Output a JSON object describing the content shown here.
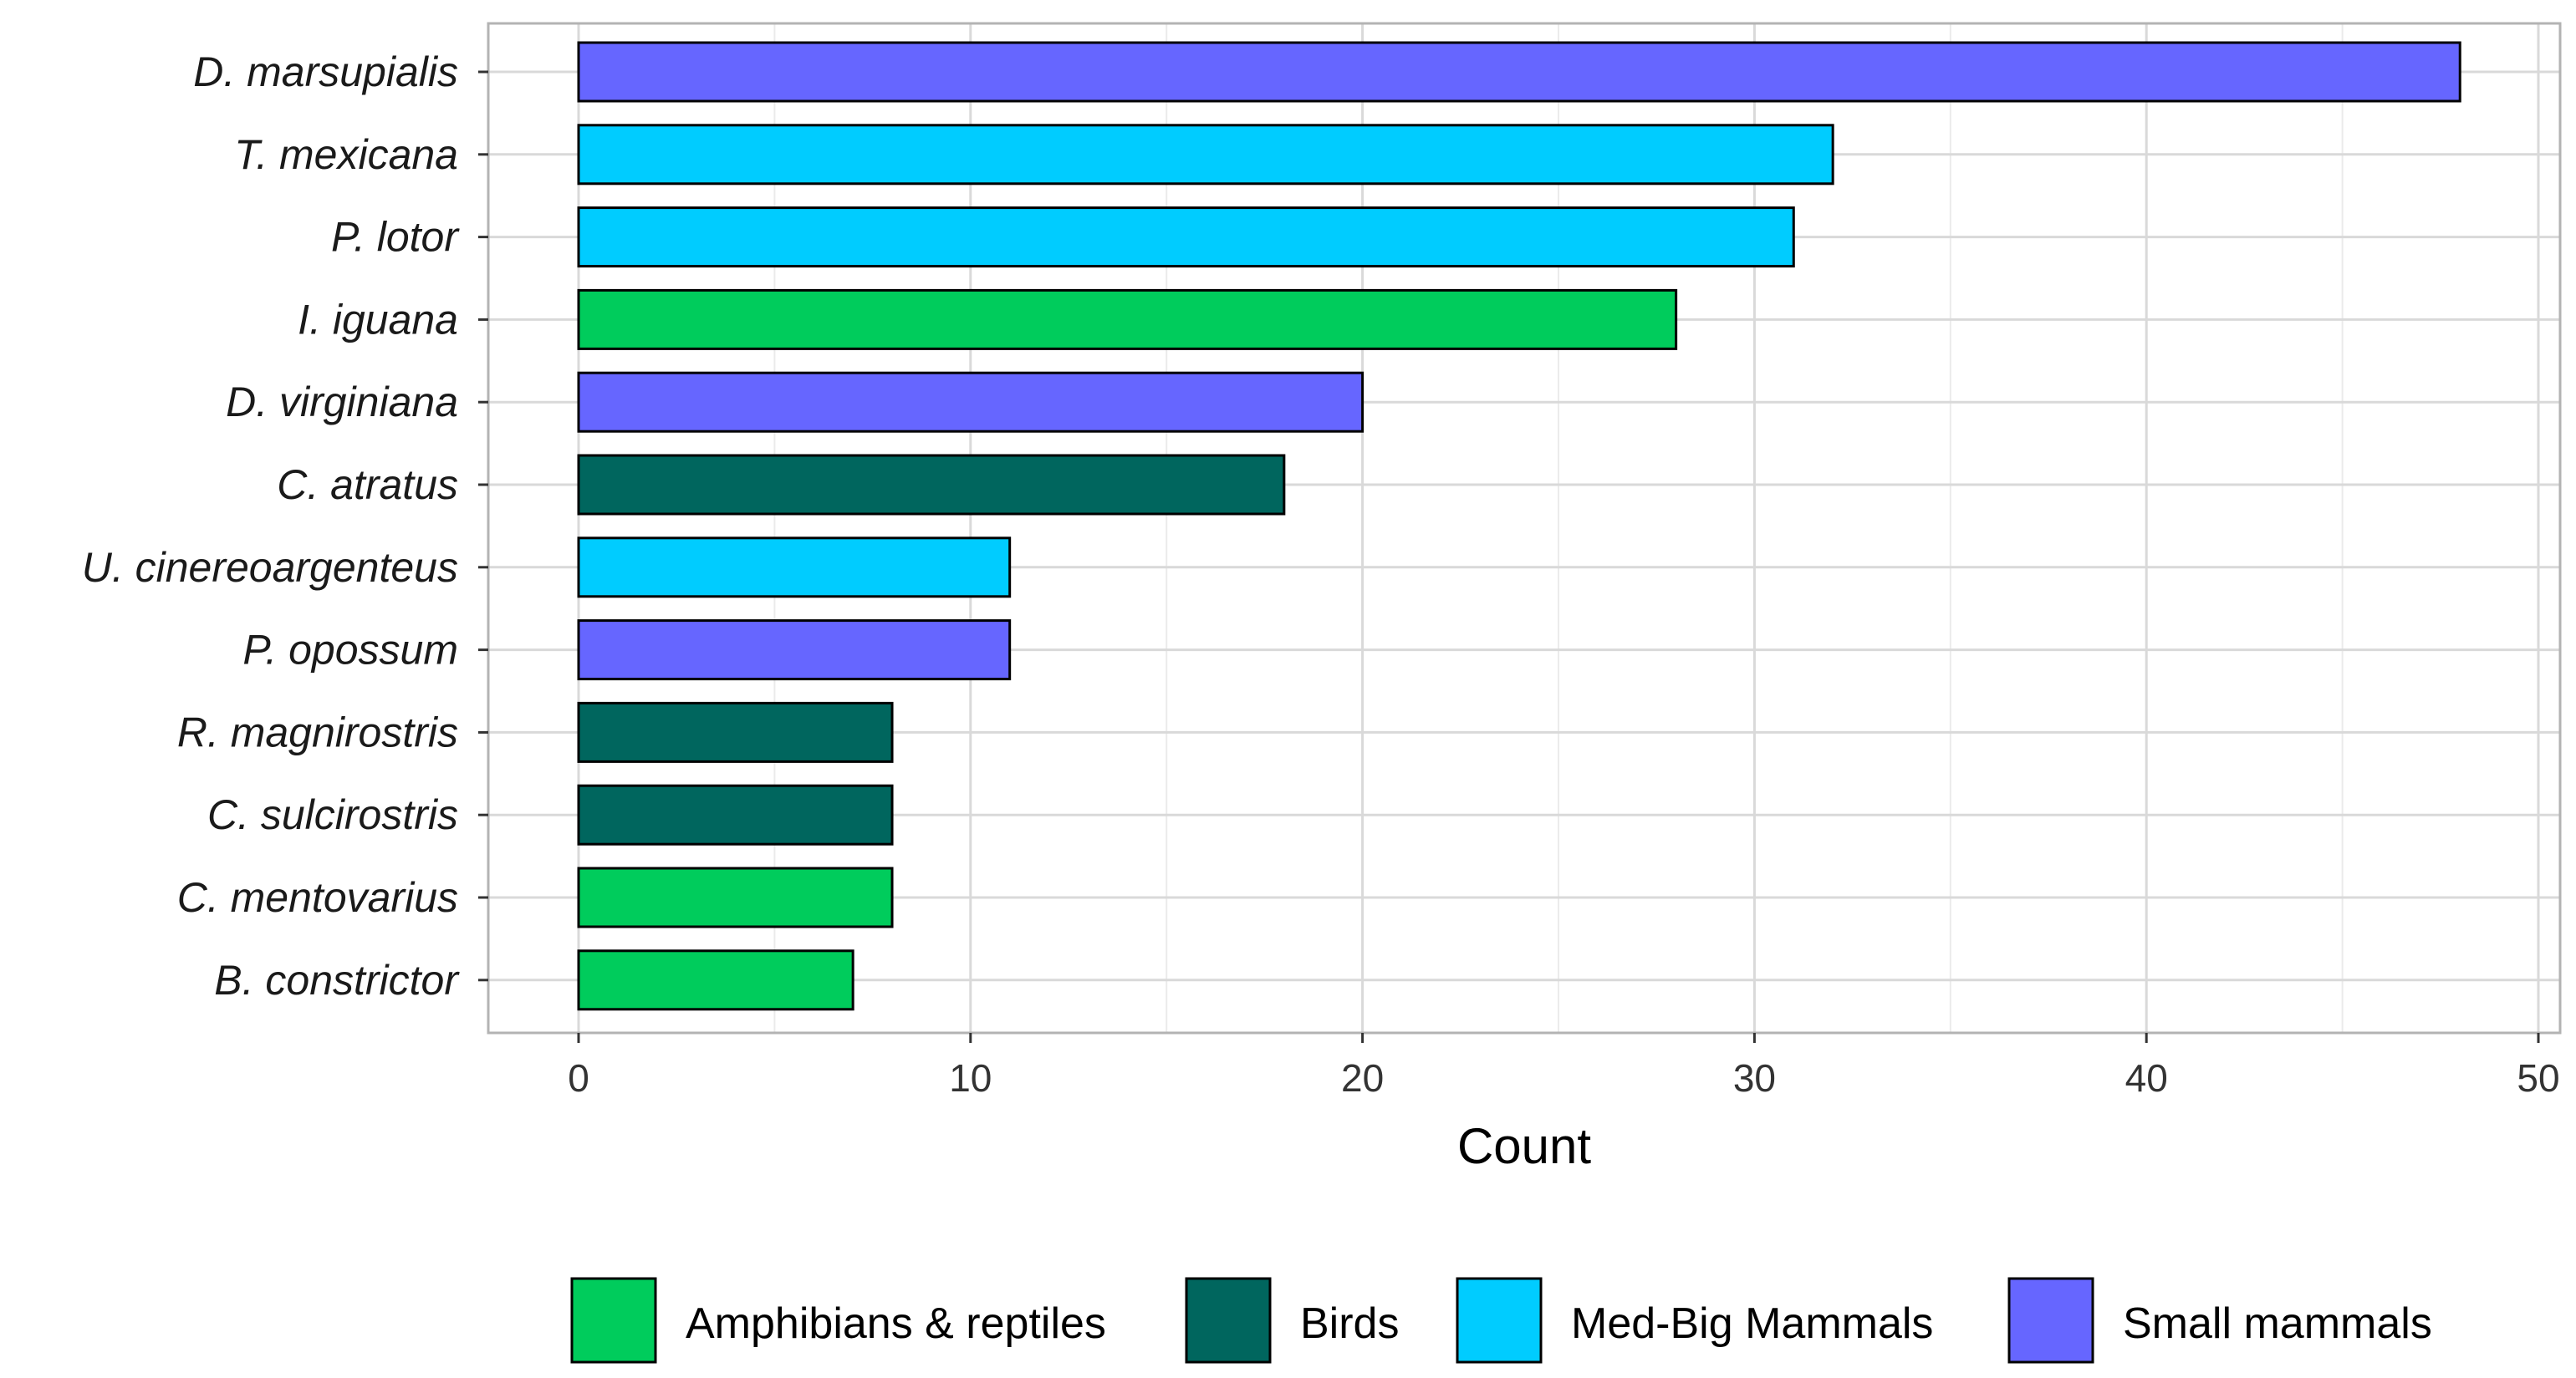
{
  "chart_data": {
    "type": "bar",
    "orientation": "horizontal",
    "title": "",
    "xlabel": "Count",
    "ylabel": "",
    "xlim": [
      0,
      50
    ],
    "xticks": [
      0,
      10,
      20,
      30,
      40,
      50
    ],
    "grid": true,
    "legend_position": "bottom",
    "categories": [
      "D. marsupialis",
      "T. mexicana",
      "P. lotor",
      "I. iguana",
      "D. virginiana",
      "C. atratus",
      "U. cinereoargenteus",
      "P. opossum",
      "R. magnirostris",
      "C. sulcirostris",
      "C. mentovarius",
      "B. constrictor"
    ],
    "values": [
      48,
      32,
      31,
      28,
      20,
      18,
      11,
      11,
      8,
      8,
      8,
      7
    ],
    "groups": [
      "Small mammals",
      "Med-Big Mammals",
      "Med-Big Mammals",
      "Amphibians & reptiles",
      "Small mammals",
      "Birds",
      "Med-Big Mammals",
      "Small mammals",
      "Birds",
      "Birds",
      "Amphibians & reptiles",
      "Amphibians & reptiles"
    ],
    "legend": [
      {
        "name": "Amphibians & reptiles",
        "color": "#00cc5c"
      },
      {
        "name": "Birds",
        "color": "#00665e"
      },
      {
        "name": "Med-Big Mammals",
        "color": "#00ccff"
      },
      {
        "name": "Small mammals",
        "color": "#6666ff"
      }
    ]
  }
}
